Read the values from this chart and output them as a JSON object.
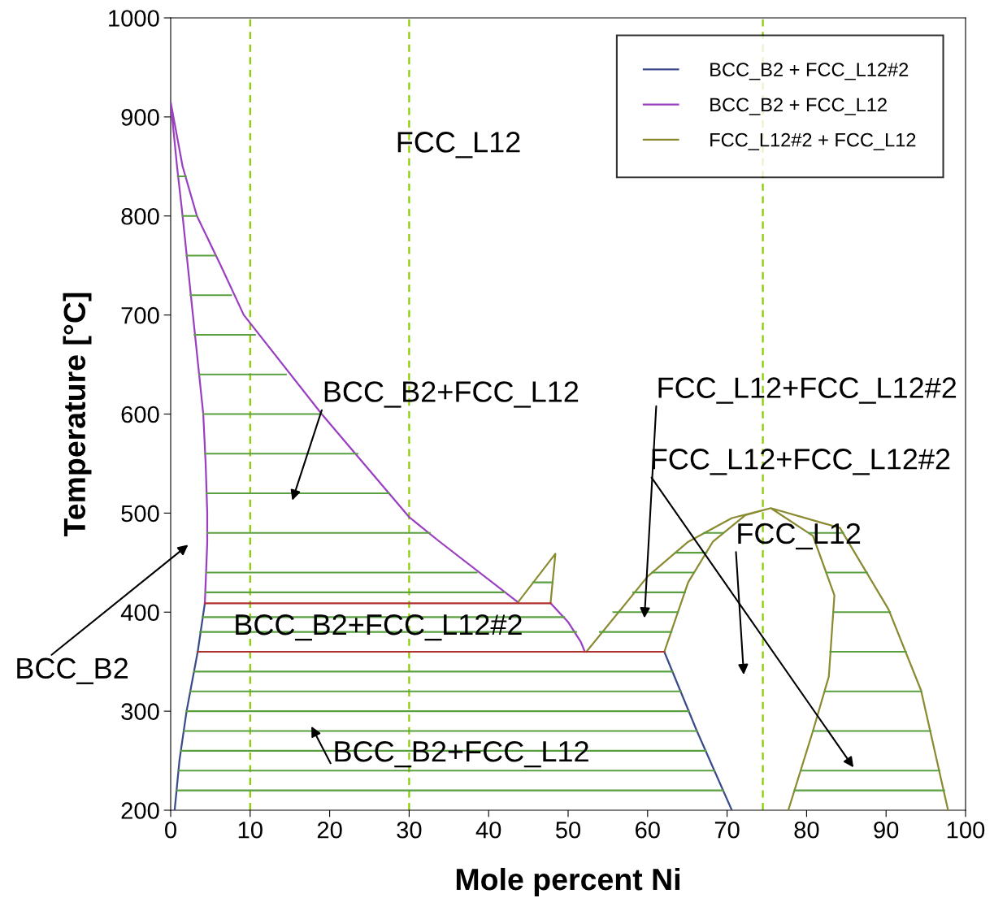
{
  "chart_data": {
    "type": "line",
    "xlabel": "Mole percent Ni",
    "ylabel": "Temperature [°C]",
    "xlim": [
      0,
      100
    ],
    "ylim": [
      200,
      1000
    ],
    "xticks": [
      0,
      10,
      20,
      30,
      40,
      50,
      60,
      70,
      80,
      90,
      100
    ],
    "yticks": [
      200,
      300,
      400,
      500,
      600,
      700,
      800,
      900,
      1000
    ],
    "grid": false,
    "legend": "top right",
    "marker": "none",
    "line_style": "solid",
    "series": [
      {
        "name": "BCC_B2 + FCC_L12#2",
        "color": "#3a4a8a",
        "x": [
          4.3,
          3.4,
          2.0,
          1.1,
          0.5,
          null,
          62.1,
          66.2,
          70.6
        ],
        "values": [
          409,
          360,
          300,
          250,
          200,
          null,
          360,
          280,
          200
        ]
      },
      {
        "name": "BCC_B2 + FCC_L12",
        "color": "#9a3fc0",
        "x": [
          4.3,
          4.6,
          4.6,
          4.4,
          4.1,
          2.8,
          1.5,
          0.8,
          0,
          1.5,
          3.3,
          6.3,
          9.2,
          19,
          30,
          33.7,
          43.7,
          null,
          47.8,
          50,
          51.6,
          52.1
        ],
        "values": [
          409,
          470,
          500,
          550,
          600,
          700,
          800,
          850,
          915,
          850,
          800,
          750,
          700,
          600,
          496,
          472,
          410,
          null,
          409,
          390,
          370,
          360
        ]
      },
      {
        "name": "FCC_L12#2 + FCC_L12",
        "color": "#8a8a30",
        "x": [
          52.3,
          60,
          65.1,
          70.6,
          75.5,
          80.8,
          83.5,
          82.8,
          80.8,
          77.7,
          null,
          62.1,
          65.1,
          68.2,
          72.3,
          75.5,
          84.2,
          90.3,
          94.4,
          97.8,
          null,
          43.7,
          48.4,
          47.8
        ],
        "values": [
          360,
          436,
          471,
          495,
          505,
          477,
          417,
          335,
          280,
          200,
          null,
          360,
          430,
          471,
          498,
          505,
          485,
          403,
          321,
          200,
          null,
          410,
          459,
          410
        ]
      },
      {
        "color": "#b03030",
        "x": [
          4.3,
          47.8,
          null,
          3.4,
          62.1
        ],
        "values": [
          409,
          409,
          null,
          360,
          360
        ]
      },
      {
        "color": "#5aa040",
        "x": [
          0.9,
          1.9,
          null,
          1.5,
          3.3,
          null,
          2.0,
          5.6,
          null,
          2.5,
          7.6,
          null,
          3.0,
          10.6,
          null,
          3.6,
          14.5,
          null,
          4.1,
          19,
          null,
          4.3,
          23.5,
          null,
          4.5,
          27.5,
          null,
          4.6,
          32.6,
          null,
          4.5,
          38.5,
          null,
          4.4,
          42,
          null,
          45.6,
          48.0,
          null,
          4.0,
          49.5,
          null,
          3.7,
          51.0,
          null,
          3.0,
          63.1,
          null,
          2.5,
          64.2,
          null,
          2.0,
          65.2,
          null,
          1.7,
          66.2,
          null,
          1.3,
          67.3,
          null,
          1.0,
          68.4,
          null,
          0.8,
          69.5,
          null,
          54.0,
          63.0,
          null,
          55.7,
          63.8,
          null,
          58.2,
          64.7,
          null,
          60.6,
          65.8,
          null,
          63.5,
          67.4,
          null,
          67.1,
          69.5,
          null,
          80.3,
          84.6,
          null,
          82.5,
          87.6,
          null,
          83.4,
          90.5,
          null,
          83.0,
          92.5,
          null,
          82.3,
          94.4,
          null,
          80.8,
          95.6,
          null,
          79.3,
          96.7,
          null,
          78.5,
          97.3
        ],
        "values": [
          840,
          840,
          null,
          800,
          800,
          null,
          760,
          760,
          null,
          720,
          720,
          null,
          680,
          680,
          null,
          640,
          640,
          null,
          600,
          600,
          null,
          560,
          560,
          null,
          520,
          520,
          null,
          480,
          480,
          null,
          440,
          440,
          null,
          420,
          420,
          null,
          430,
          430,
          null,
          395,
          395,
          null,
          380,
          380,
          null,
          340,
          340,
          null,
          320,
          320,
          null,
          300,
          300,
          null,
          280,
          280,
          null,
          260,
          260,
          null,
          240,
          240,
          null,
          220,
          220,
          null,
          380,
          380,
          null,
          400,
          400,
          null,
          420,
          420,
          null,
          440,
          440,
          null,
          460,
          460,
          null,
          480,
          480,
          null,
          480,
          480,
          null,
          440,
          440,
          null,
          400,
          400,
          null,
          360,
          360,
          null,
          320,
          320,
          null,
          280,
          280,
          null,
          240,
          240,
          null,
          220,
          220
        ]
      }
    ],
    "ref_lines": [
      {
        "axis": "x",
        "value": 10,
        "color": "#88cc00",
        "line_style": "dashed"
      },
      {
        "axis": "x",
        "value": 30,
        "color": "#88cc00",
        "line_style": "dashed"
      },
      {
        "axis": "x",
        "value": 74.5,
        "color": "#88cc00",
        "line_style": "dashed"
      }
    ],
    "annotations": [
      "FCC_L12",
      "BCC_B2+FCC_L12",
      "FCC_L12+FCC_L12#2",
      "FCC_L12+FCC_L12#2",
      "FCC_L12",
      "BCC_B2+FCC_L12#2",
      "BCC_B2",
      "BCC_B2+FCC_L12"
    ]
  }
}
